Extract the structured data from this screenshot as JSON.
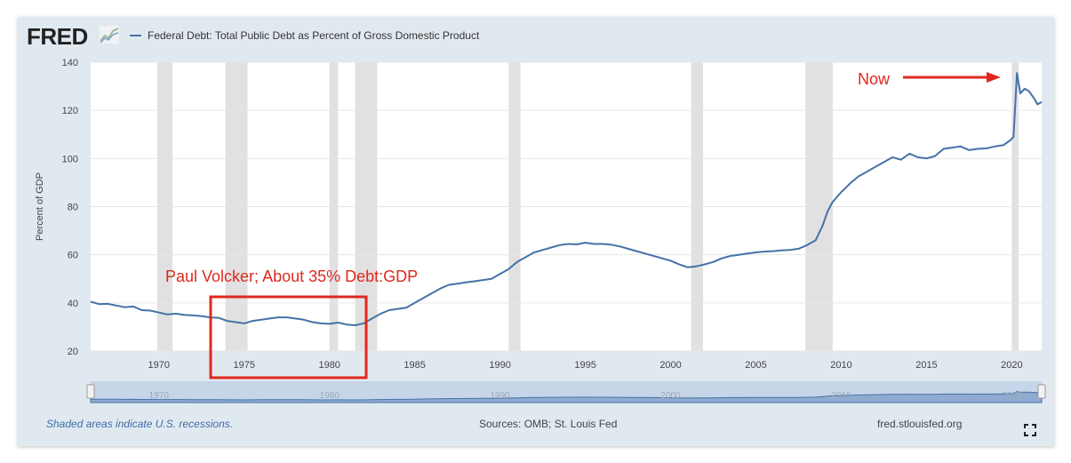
{
  "header": {
    "logo_text": "FRED",
    "legend_label": "Federal Debt: Total Public Debt as Percent of Gross Domestic Product"
  },
  "footer": {
    "recession_note": "Shaded areas indicate U.S. recessions.",
    "sources": "Sources: OMB; St. Louis Fed",
    "site": "fred.stlouisfed.org"
  },
  "annotations": {
    "volcker_text": "Paul Volcker; About 35% Debt:GDP",
    "now_text": "Now",
    "color": "#e0281e"
  },
  "colors": {
    "line": "#4572a7",
    "recession": "#e1e1e1",
    "navigator_fill": "#6c8fc0"
  },
  "chart_data": {
    "type": "line",
    "title": "Federal Debt: Total Public Debt as Percent of Gross Domestic Product",
    "xlabel": "",
    "ylabel": "Percent of GDP",
    "xlim": [
      1966.0,
      2021.75
    ],
    "ylim": [
      20,
      140
    ],
    "yticks": [
      20,
      40,
      60,
      80,
      100,
      120,
      140
    ],
    "xticks": [
      1970,
      1975,
      1980,
      1985,
      1990,
      1995,
      2000,
      2005,
      2010,
      2015,
      2020
    ],
    "navigator_ticks": [
      1970,
      1980,
      1990,
      2000,
      2010,
      2020
    ],
    "recessions": [
      [
        1969.9,
        1970.8
      ],
      [
        1973.9,
        1975.2
      ],
      [
        1980.0,
        1980.5
      ],
      [
        1981.5,
        1982.8
      ],
      [
        1990.5,
        1991.2
      ],
      [
        2001.2,
        2001.9
      ],
      [
        2007.9,
        2009.5
      ],
      [
        2020.0,
        2020.4
      ]
    ],
    "series": [
      {
        "name": "Federal Debt: Total Public Debt as Percent of Gross Domestic Product",
        "points": [
          [
            1966.0,
            40.5
          ],
          [
            1966.5,
            39.5
          ],
          [
            1967.0,
            39.6
          ],
          [
            1967.5,
            38.9
          ],
          [
            1968.0,
            38.2
          ],
          [
            1968.5,
            38.5
          ],
          [
            1969.0,
            37.0
          ],
          [
            1969.5,
            36.8
          ],
          [
            1970.0,
            36.0
          ],
          [
            1970.5,
            35.2
          ],
          [
            1971.0,
            35.5
          ],
          [
            1971.5,
            35.0
          ],
          [
            1972.0,
            34.8
          ],
          [
            1972.5,
            34.5
          ],
          [
            1973.0,
            34.0
          ],
          [
            1973.5,
            33.8
          ],
          [
            1974.0,
            32.5
          ],
          [
            1974.5,
            32.0
          ],
          [
            1975.0,
            31.5
          ],
          [
            1975.5,
            32.5
          ],
          [
            1976.0,
            33.0
          ],
          [
            1976.5,
            33.5
          ],
          [
            1977.0,
            34.0
          ],
          [
            1977.5,
            34.0
          ],
          [
            1978.0,
            33.5
          ],
          [
            1978.5,
            33.0
          ],
          [
            1979.0,
            32.0
          ],
          [
            1979.5,
            31.5
          ],
          [
            1980.0,
            31.3
          ],
          [
            1980.5,
            31.8
          ],
          [
            1981.0,
            31.0
          ],
          [
            1981.5,
            30.7
          ],
          [
            1982.0,
            31.5
          ],
          [
            1982.5,
            33.5
          ],
          [
            1983.0,
            35.5
          ],
          [
            1983.5,
            37.0
          ],
          [
            1984.0,
            37.5
          ],
          [
            1984.5,
            38.0
          ],
          [
            1985.0,
            40.0
          ],
          [
            1985.5,
            42.0
          ],
          [
            1986.0,
            44.0
          ],
          [
            1986.5,
            46.0
          ],
          [
            1987.0,
            47.5
          ],
          [
            1987.5,
            48.0
          ],
          [
            1988.0,
            48.5
          ],
          [
            1988.5,
            49.0
          ],
          [
            1989.0,
            49.5
          ],
          [
            1989.5,
            50.0
          ],
          [
            1990.0,
            52.0
          ],
          [
            1990.5,
            54.0
          ],
          [
            1991.0,
            57.0
          ],
          [
            1991.5,
            59.0
          ],
          [
            1992.0,
            61.0
          ],
          [
            1992.5,
            62.0
          ],
          [
            1993.0,
            63.0
          ],
          [
            1993.5,
            64.0
          ],
          [
            1994.0,
            64.5
          ],
          [
            1994.5,
            64.3
          ],
          [
            1995.0,
            65.0
          ],
          [
            1995.5,
            64.5
          ],
          [
            1996.0,
            64.5
          ],
          [
            1996.5,
            64.2
          ],
          [
            1997.0,
            63.5
          ],
          [
            1997.5,
            62.5
          ],
          [
            1998.0,
            61.5
          ],
          [
            1998.5,
            60.5
          ],
          [
            1999.0,
            59.5
          ],
          [
            1999.5,
            58.5
          ],
          [
            2000.0,
            57.5
          ],
          [
            2000.5,
            56.0
          ],
          [
            2001.0,
            54.8
          ],
          [
            2001.5,
            55.2
          ],
          [
            2002.0,
            56.0
          ],
          [
            2002.5,
            57.0
          ],
          [
            2003.0,
            58.5
          ],
          [
            2003.5,
            59.5
          ],
          [
            2004.0,
            60.0
          ],
          [
            2004.5,
            60.5
          ],
          [
            2005.0,
            61.0
          ],
          [
            2005.5,
            61.3
          ],
          [
            2006.0,
            61.5
          ],
          [
            2006.5,
            61.8
          ],
          [
            2007.0,
            62.0
          ],
          [
            2007.5,
            62.5
          ],
          [
            2008.0,
            64.0
          ],
          [
            2008.5,
            66.0
          ],
          [
            2008.9,
            72.0
          ],
          [
            2009.2,
            78.0
          ],
          [
            2009.5,
            82.0
          ],
          [
            2010.0,
            86.0
          ],
          [
            2010.5,
            89.5
          ],
          [
            2011.0,
            92.5
          ],
          [
            2011.5,
            94.5
          ],
          [
            2012.0,
            96.5
          ],
          [
            2012.5,
            98.5
          ],
          [
            2013.0,
            100.5
          ],
          [
            2013.5,
            99.5
          ],
          [
            2014.0,
            102.0
          ],
          [
            2014.5,
            100.5
          ],
          [
            2015.0,
            100.0
          ],
          [
            2015.5,
            101.0
          ],
          [
            2016.0,
            104.0
          ],
          [
            2016.5,
            104.5
          ],
          [
            2017.0,
            105.0
          ],
          [
            2017.5,
            103.5
          ],
          [
            2018.0,
            104.0
          ],
          [
            2018.5,
            104.2
          ],
          [
            2019.0,
            105.0
          ],
          [
            2019.5,
            105.5
          ],
          [
            2019.9,
            107.5
          ],
          [
            2020.1,
            109.0
          ],
          [
            2020.3,
            135.5
          ],
          [
            2020.5,
            127.0
          ],
          [
            2020.75,
            129.0
          ],
          [
            2021.0,
            128.0
          ],
          [
            2021.3,
            125.0
          ],
          [
            2021.5,
            122.5
          ],
          [
            2021.75,
            123.5
          ]
        ]
      }
    ]
  }
}
